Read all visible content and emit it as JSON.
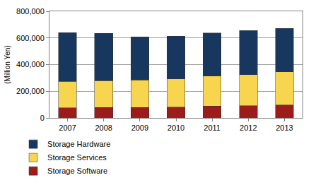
{
  "chart_data": {
    "type": "bar",
    "stacked": true,
    "categories": [
      "2007",
      "2008",
      "2009",
      "2010",
      "2011",
      "2012",
      "2013"
    ],
    "series": [
      {
        "name": "Storage Software",
        "color": "#9c1c1c",
        "values": [
          75000,
          78000,
          78000,
          80000,
          88000,
          92000,
          98000
        ]
      },
      {
        "name": "Storage Services",
        "color": "#f7d54e",
        "values": [
          200000,
          202000,
          207000,
          213000,
          225000,
          233000,
          247000
        ]
      },
      {
        "name": "Storage Hardware",
        "color": "#17375e",
        "values": [
          365000,
          355000,
          323000,
          319000,
          323000,
          330000,
          327000
        ]
      }
    ],
    "y_label": "(Million Yen)",
    "ylim": [
      0,
      800000
    ],
    "yticks": [
      0,
      {
        "value": 200000,
        "label": "200,000"
      },
      {
        "value": 400000,
        "label": "400,000"
      },
      {
        "value": 600000,
        "label": "600,000"
      },
      {
        "value": 800000,
        "label": "800,000"
      }
    ],
    "grid": true,
    "legend": "bottom"
  }
}
